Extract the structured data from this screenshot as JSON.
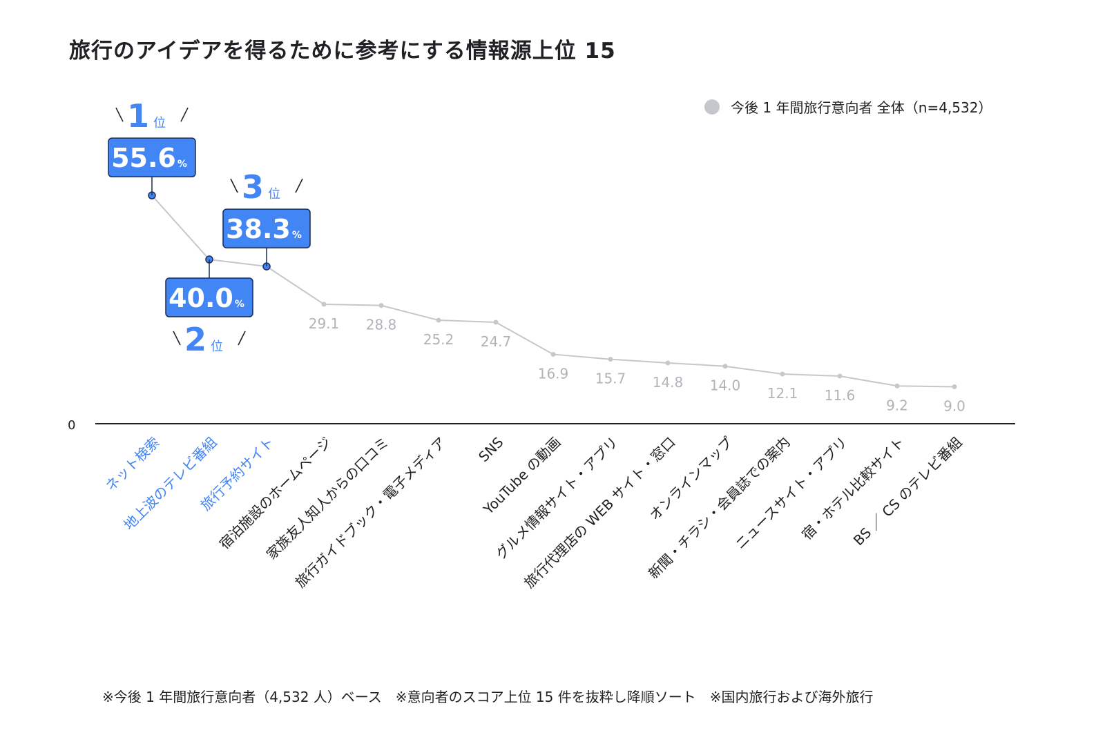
{
  "title": "旅行のアイデアを得るために参考にする情報源上位 15",
  "legend": {
    "label": "今後 1 年間旅行意向者 全体（n=4,532）",
    "marker_color": "#c5c7cc"
  },
  "zero_label": "0",
  "rank_label_suffix": "位",
  "percent_suffix": "%",
  "footnote": "※今後 1 年間旅行意向者（4,532 人）ベース　※意向者のスコア上位 15 件を抜粋し降順ソート　※国内旅行および海外旅行",
  "colors": {
    "highlight": "#4285f4",
    "line": "#c5c7cc",
    "muted_label": "#b0b3b8",
    "axis": "#202124"
  },
  "chart_data": {
    "type": "line",
    "categories": [
      "ネット検索",
      "地上波のテレビ番組",
      "旅行予約サイト",
      "宿泊施設のホームページ",
      "家族友人知人からの口コミ",
      "旅行ガイドブック・電子メディア",
      "SNS",
      "YouTube の動画",
      "グルメ情報サイト・アプリ",
      "旅行代理店の WEB サイト・窓口",
      "オンラインマップ",
      "新聞・チラシ・会員誌での案内",
      "ニュースサイト・アプリ",
      "宿・ホテル比較サイト",
      "BS ／ CS のテレビ番組"
    ],
    "values": [
      55.6,
      40.0,
      38.3,
      29.1,
      28.8,
      25.2,
      24.7,
      16.9,
      15.7,
      14.8,
      14.0,
      12.1,
      11.6,
      9.2,
      9.0
    ],
    "value_labels": [
      "55.6",
      "40.0",
      "38.3",
      "29.1",
      "28.8",
      "25.2",
      "24.7",
      "16.9",
      "15.7",
      "14.8",
      "14.0",
      "12.1",
      "11.6",
      "9.2",
      "9.0"
    ],
    "highlighted_ranks": [
      1,
      2,
      3
    ],
    "ylim": [
      0,
      60
    ],
    "grid": false,
    "legend_position": "top-right"
  }
}
